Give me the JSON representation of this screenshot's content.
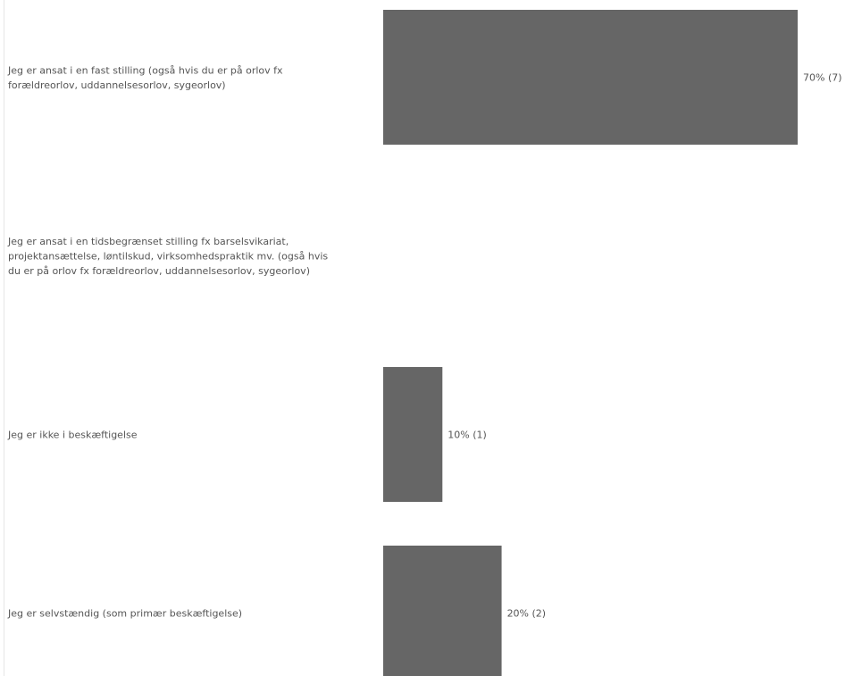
{
  "chart_data": {
    "type": "bar",
    "orientation": "horizontal",
    "categories": [
      "Jeg er ansat i en fast stilling (også hvis du er på orlov fx forældreorlov, uddannelsesorlov, sygeorlov)",
      "Jeg er ansat i en tidsbegrænset stilling fx barselsvikariat, projektansættelse, løntilskud, virksomhedspraktik mv. (også hvis du er på orlov fx forældreorlov, uddannelsesorlov, sygeorlov)",
      "Jeg er ikke i beskæftigelse",
      "Jeg er selvstændig (som primær beskæftigelse)"
    ],
    "category_lines": [
      [
        "Jeg er ansat i en fast stilling (også hvis du er på orlov fx",
        "forældreorlov, uddannelsesorlov, sygeorlov)"
      ],
      [
        "Jeg er ansat i en tidsbegrænset stilling fx barselsvikariat,",
        "projektansættelse, løntilskud, virksomhedspraktik mv. (også hvis",
        "du er på orlov fx forældreorlov, uddannelsesorlov, sygeorlov)"
      ],
      [
        "Jeg er ikke i beskæftigelse"
      ],
      [
        "Jeg er selvstændig (som primær beskæftigelse)"
      ]
    ],
    "values": [
      70,
      0,
      10,
      20
    ],
    "counts": [
      7,
      0,
      1,
      2
    ],
    "data_labels": [
      "70% (7)",
      "",
      "10% (1)",
      "20% (2)"
    ],
    "xlim": [
      0,
      70
    ],
    "grid": false,
    "bar_color": "#666666",
    "label_color": "#555555"
  }
}
